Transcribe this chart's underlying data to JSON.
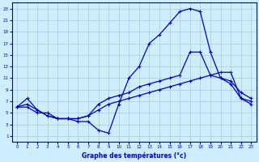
{
  "background_color": "#cceeff",
  "grid_color": "#aacccc",
  "line_color": "#0000cc",
  "xlabel": "Graphe des températures (°c)",
  "xlim": [
    -0.5,
    23.5
  ],
  "ylim": [
    0,
    24
  ],
  "yticks": [
    1,
    3,
    5,
    7,
    9,
    11,
    13,
    15,
    17,
    19,
    21,
    23
  ],
  "xticks": [
    0,
    1,
    2,
    3,
    4,
    5,
    6,
    7,
    8,
    9,
    10,
    11,
    12,
    13,
    14,
    15,
    16,
    17,
    18,
    19,
    20,
    21,
    22,
    23
  ],
  "line1_x": [
    0,
    1,
    2,
    3,
    4,
    5,
    6,
    7,
    8,
    9,
    10,
    11,
    12,
    13,
    14,
    15,
    16,
    17,
    18,
    19,
    20,
    21,
    22,
    23
  ],
  "line1_y": [
    6.0,
    6.0,
    5.0,
    5.0,
    4.0,
    4.0,
    3.5,
    3.5,
    2.0,
    1.5,
    6.5,
    11.0,
    13.0,
    17.0,
    18.5,
    20.5,
    22.5,
    23.0,
    22.5,
    15.5,
    11.0,
    10.0,
    7.5,
    6.5
  ],
  "line2_x": [
    0,
    1,
    2,
    3,
    4,
    5,
    6,
    7,
    8,
    9,
    10,
    11,
    12,
    13,
    14,
    15,
    16,
    17,
    18,
    19,
    20,
    21,
    22,
    23
  ],
  "line2_y": [
    6.0,
    7.5,
    5.5,
    4.5,
    4.0,
    4.0,
    4.0,
    4.5,
    6.5,
    7.5,
    8.0,
    8.5,
    9.5,
    10.0,
    10.5,
    11.0,
    11.5,
    15.5,
    15.5,
    11.5,
    11.0,
    10.5,
    8.5,
    7.5
  ],
  "line3_x": [
    0,
    1,
    2,
    3,
    4,
    5,
    6,
    7,
    8,
    9,
    10,
    11,
    12,
    13,
    14,
    15,
    16,
    17,
    18,
    19,
    20,
    21,
    22,
    23
  ],
  "line3_y": [
    6.0,
    6.5,
    5.5,
    4.5,
    4.0,
    4.0,
    4.0,
    4.5,
    5.5,
    6.5,
    7.0,
    7.5,
    8.0,
    8.5,
    9.0,
    9.5,
    10.0,
    10.5,
    11.0,
    11.5,
    12.0,
    12.0,
    7.5,
    7.0
  ]
}
